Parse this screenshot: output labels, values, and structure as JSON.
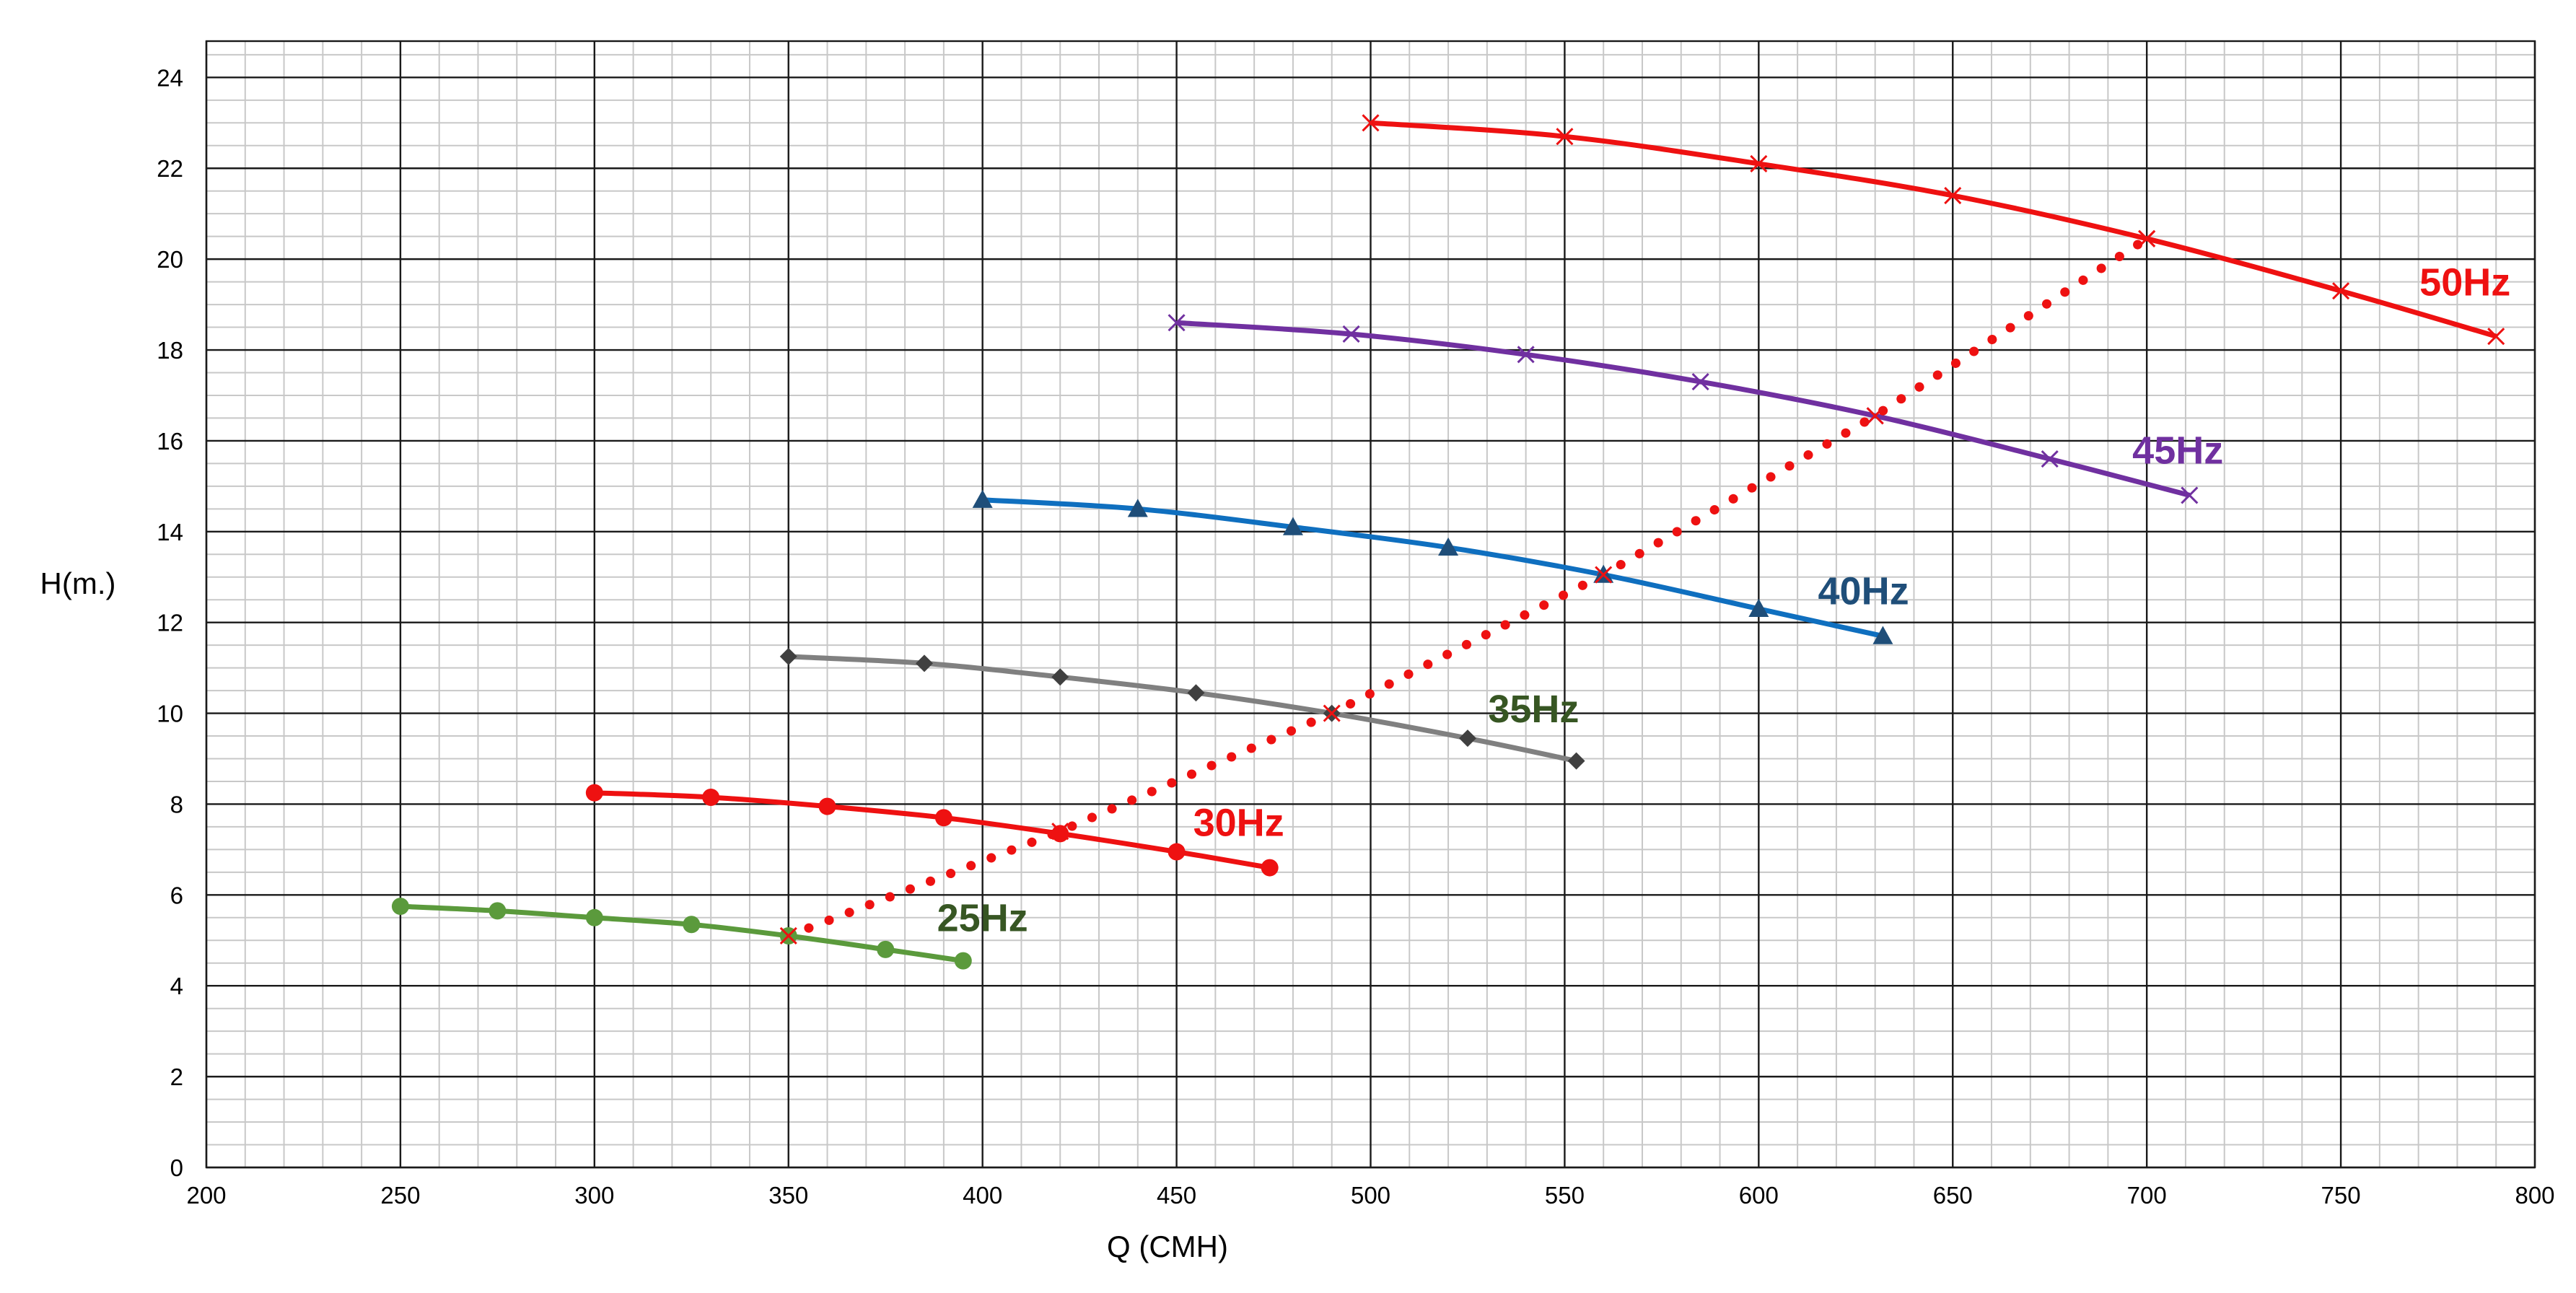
{
  "chart_data": {
    "type": "line",
    "xlabel": "Q (CMH)",
    "ylabel": "H(m.)",
    "xlim": [
      200,
      800
    ],
    "ylim": [
      0,
      24.8
    ],
    "x_ticks": [
      200,
      250,
      300,
      350,
      400,
      450,
      500,
      550,
      600,
      650,
      700,
      750,
      800
    ],
    "y_ticks": [
      0,
      2,
      4,
      6,
      8,
      10,
      12,
      14,
      16,
      18,
      20,
      22,
      24
    ],
    "grid": true,
    "legend": "none",
    "series": [
      {
        "name": "50Hz",
        "color": "#ee1111",
        "marker": "x",
        "dash": false,
        "label_at": [
          782,
          19.2
        ],
        "x": [
          500,
          550,
          600,
          650,
          700,
          750,
          790
        ],
        "y": [
          23.0,
          22.7,
          22.1,
          21.4,
          20.45,
          19.3,
          18.3
        ]
      },
      {
        "name": "45Hz",
        "color": "#7030a0",
        "marker": "x",
        "dash": false,
        "label_at": [
          708,
          15.5
        ],
        "x": [
          450,
          495,
          540,
          585,
          630,
          675,
          711
        ],
        "y": [
          18.6,
          18.35,
          17.9,
          17.3,
          16.55,
          15.6,
          14.8
        ]
      },
      {
        "name": "40Hz",
        "color": "#0f6fbf",
        "label_color": "#1f4e79",
        "marker": "triangle",
        "dash": false,
        "label_at": [
          627,
          12.4
        ],
        "x": [
          400,
          440,
          480,
          520,
          560,
          600,
          632
        ],
        "y": [
          14.7,
          14.5,
          14.1,
          13.65,
          13.05,
          12.3,
          11.7
        ]
      },
      {
        "name": "35Hz",
        "color": "#808080",
        "label_color": "#375623",
        "marker": "diamond",
        "dash": false,
        "label_at": [
          542,
          9.8
        ],
        "x": [
          350,
          385,
          420,
          455,
          490,
          525,
          553
        ],
        "y": [
          11.25,
          11.1,
          10.8,
          10.45,
          10.0,
          9.45,
          8.95
        ]
      },
      {
        "name": "30Hz",
        "color": "#ee1111",
        "marker": "circle",
        "dash": false,
        "label_at": [
          466,
          7.3
        ],
        "x": [
          300,
          330,
          360,
          390,
          420,
          450,
          474
        ],
        "y": [
          8.25,
          8.15,
          7.95,
          7.7,
          7.35,
          6.95,
          6.6
        ]
      },
      {
        "name": "25Hz",
        "color": "#5b9a3c",
        "label_color": "#375623",
        "marker": "circle",
        "dash": false,
        "label_at": [
          400,
          5.2
        ],
        "x": [
          250,
          275,
          300,
          325,
          350,
          375,
          395
        ],
        "y": [
          5.75,
          5.65,
          5.5,
          5.35,
          5.1,
          4.8,
          4.55
        ]
      },
      {
        "name": "",
        "color": "#ee1111",
        "marker": "x",
        "dash": true,
        "x": [
          350,
          420,
          490,
          560,
          630,
          700
        ],
        "y": [
          5.1,
          7.4,
          10.0,
          13.05,
          16.55,
          20.45
        ]
      }
    ]
  }
}
